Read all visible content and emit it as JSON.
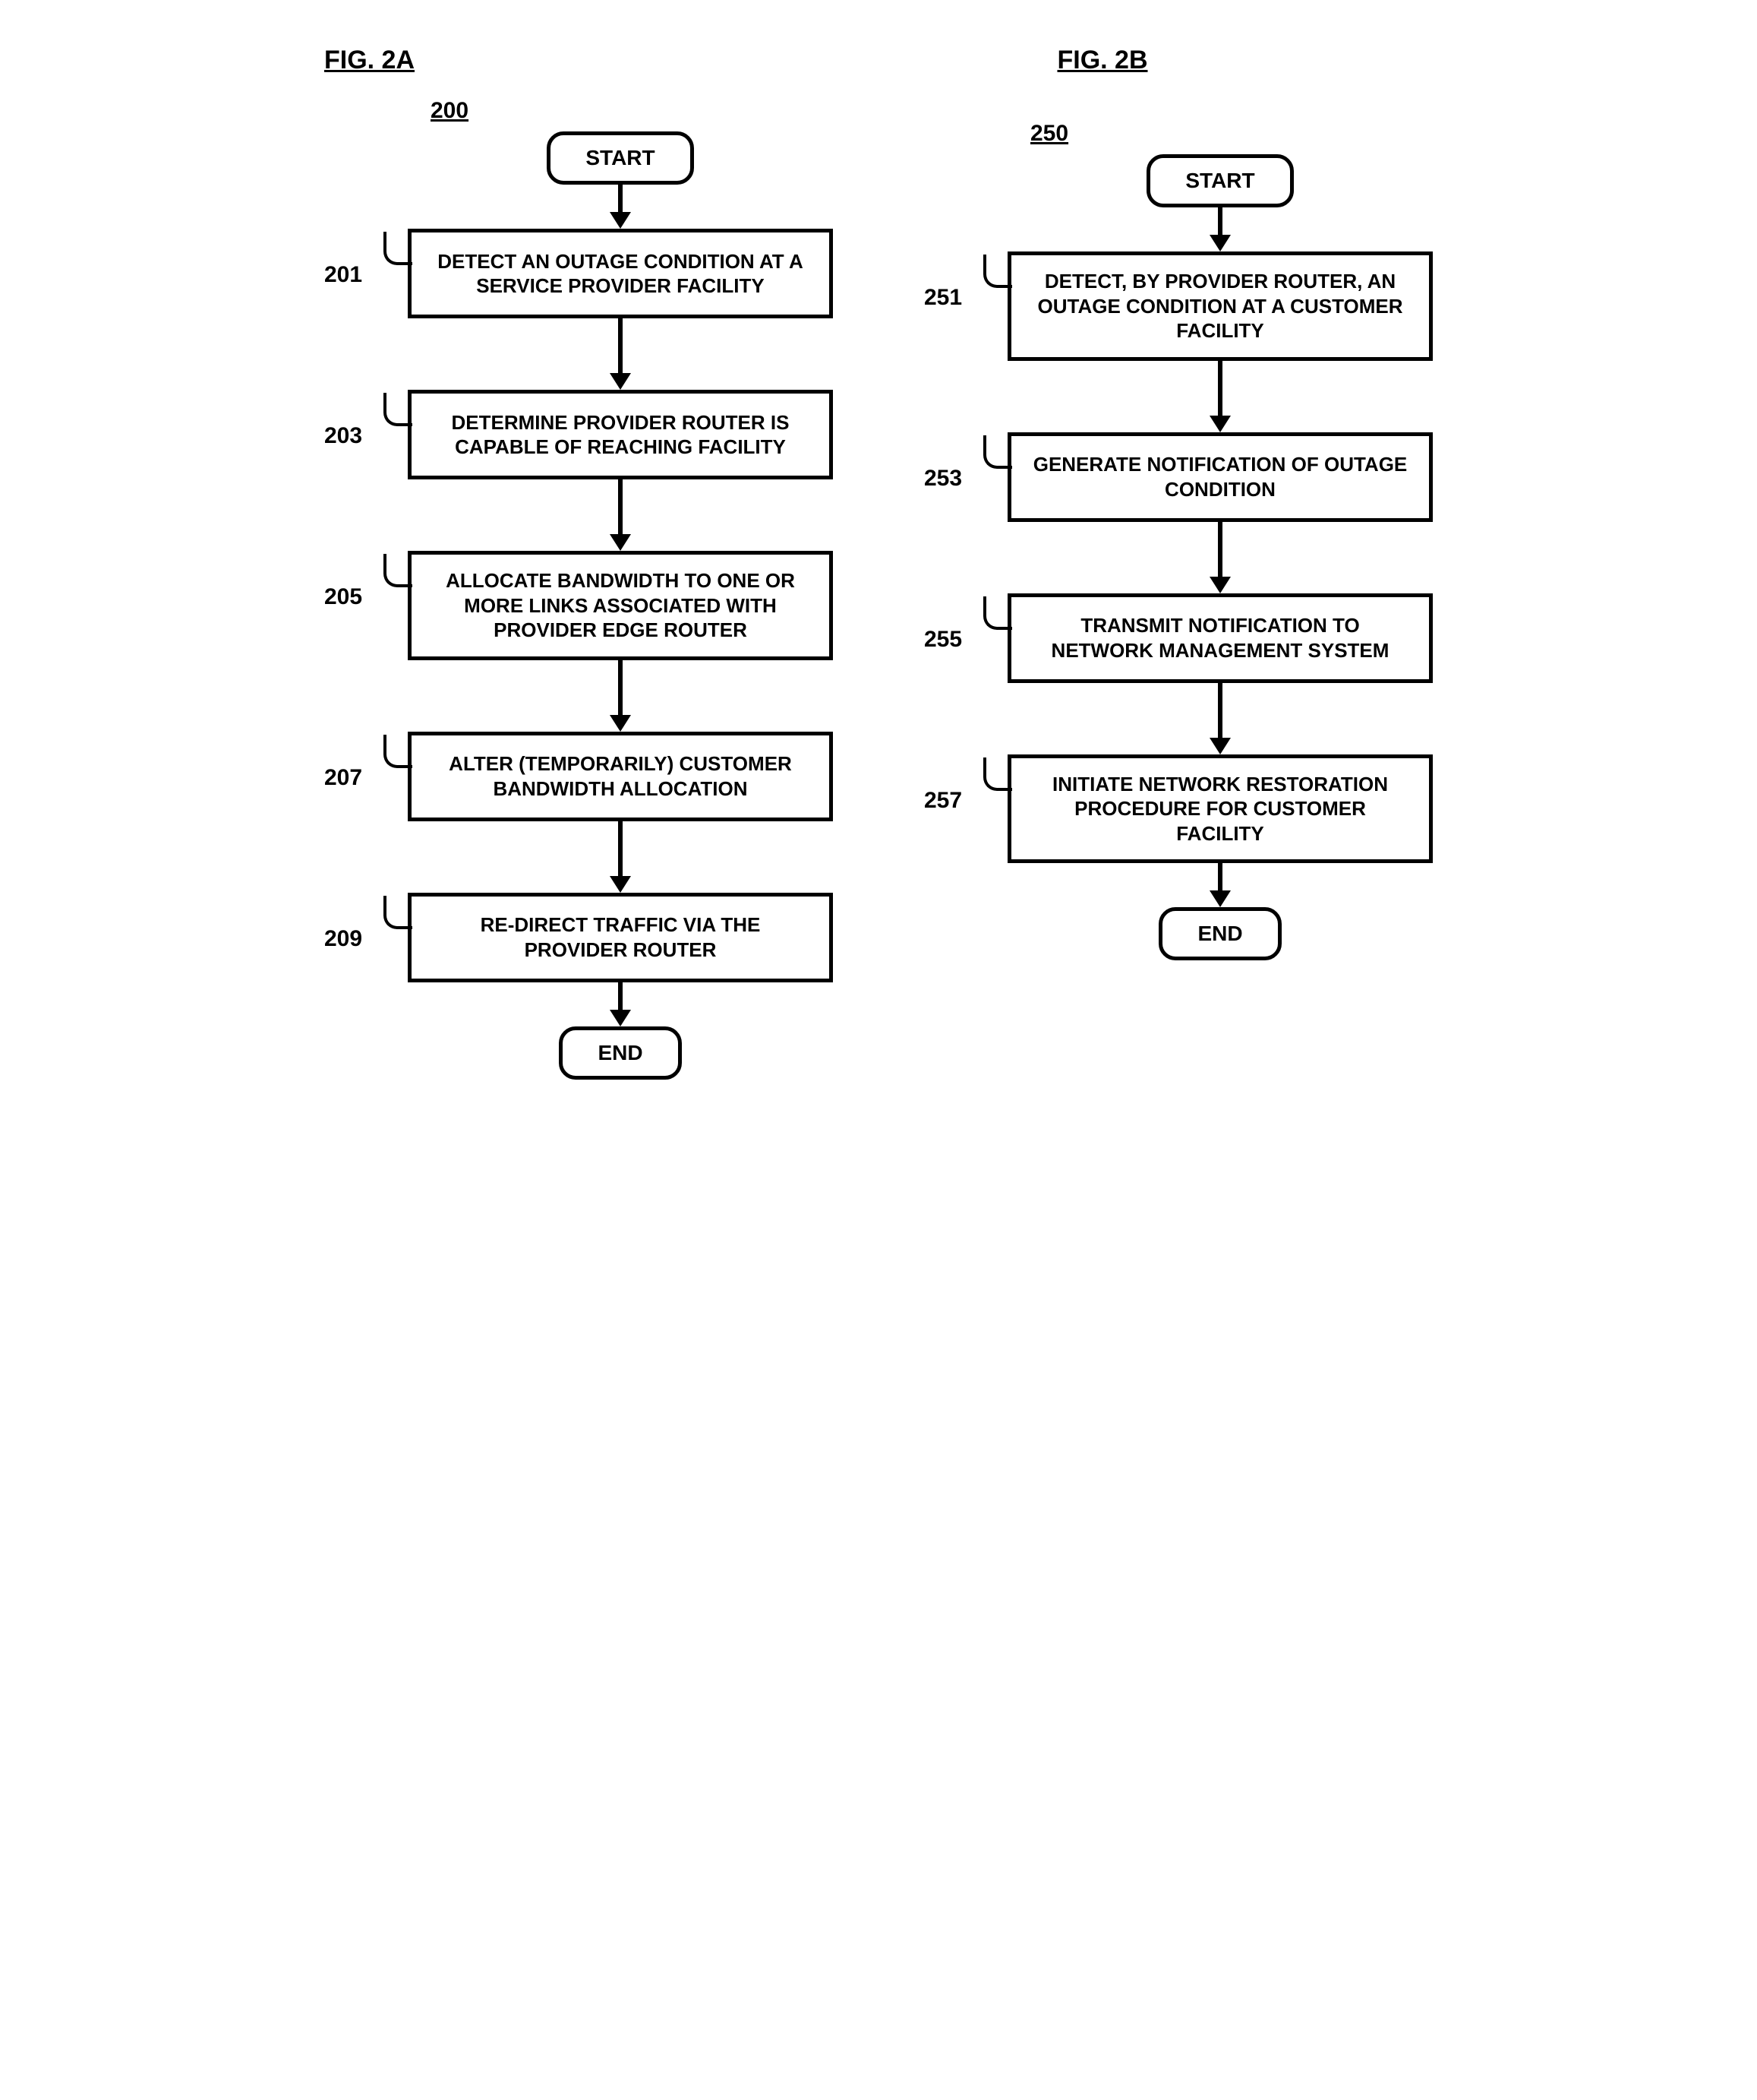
{
  "figA": {
    "label": "FIG. 2A",
    "ref": "200",
    "start": "START",
    "end": "END",
    "arrow_shaft_short": 36,
    "arrow_shaft_long": 72,
    "steps": [
      {
        "num": "201",
        "text": "DETECT AN OUTAGE CONDITION AT A SERVICE PROVIDER FACILITY"
      },
      {
        "num": "203",
        "text": "DETERMINE PROVIDER ROUTER IS CAPABLE OF REACHING FACILITY"
      },
      {
        "num": "205",
        "text": "ALLOCATE BANDWIDTH TO ONE OR MORE LINKS ASSOCIATED WITH PROVIDER EDGE ROUTER"
      },
      {
        "num": "207",
        "text": "ALTER (TEMPORARILY) CUSTOMER BANDWIDTH ALLOCATION"
      },
      {
        "num": "209",
        "text": "RE-DIRECT TRAFFIC VIA THE PROVIDER ROUTER"
      }
    ]
  },
  "figB": {
    "label": "FIG. 2B",
    "ref": "250",
    "start": "START",
    "end": "END",
    "arrow_shaft_short": 36,
    "arrow_shaft_long": 72,
    "steps": [
      {
        "num": "251",
        "text": "DETECT, BY PROVIDER ROUTER, AN OUTAGE CONDITION AT A CUSTOMER FACILITY"
      },
      {
        "num": "253",
        "text": "GENERATE NOTIFICATION OF OUTAGE CONDITION"
      },
      {
        "num": "255",
        "text": "TRANSMIT NOTIFICATION TO NETWORK MANAGEMENT SYSTEM"
      },
      {
        "num": "257",
        "text": "INITIATE NETWORK RESTORATION PROCEDURE FOR CUSTOMER FACILITY"
      }
    ]
  }
}
